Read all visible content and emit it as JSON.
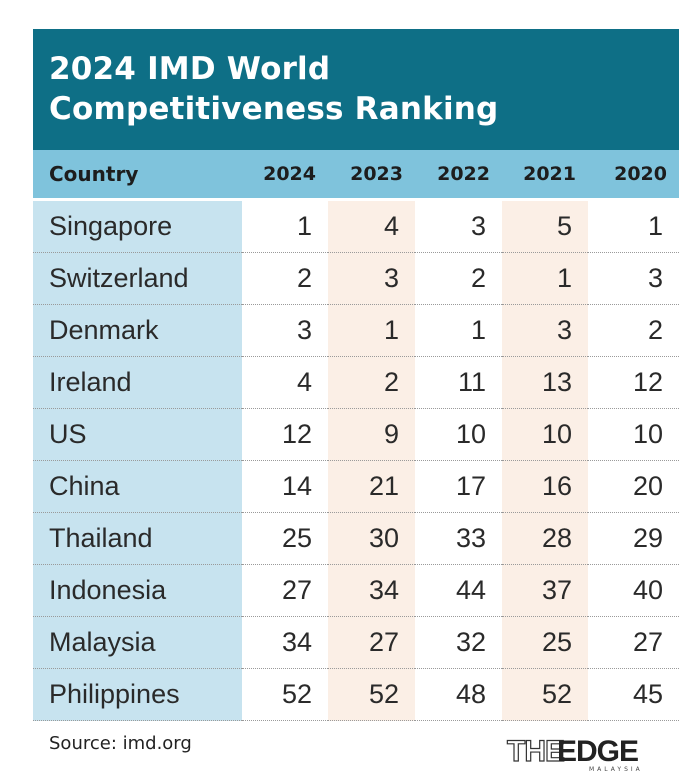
{
  "title": {
    "line1": "2024 IMD World",
    "line2": "Competitiveness Ranking"
  },
  "table": {
    "headers": [
      "Country",
      "2024",
      "2023",
      "2022",
      "2021",
      "2020"
    ],
    "rows": [
      [
        "Singapore",
        "1",
        "4",
        "3",
        "5",
        "1"
      ],
      [
        "Switzerland",
        "2",
        "3",
        "2",
        "1",
        "3"
      ],
      [
        "Denmark",
        "3",
        "1",
        "1",
        "3",
        "2"
      ],
      [
        "Ireland",
        "4",
        "2",
        "11",
        "13",
        "12"
      ],
      [
        "US",
        "12",
        "9",
        "10",
        "10",
        "10"
      ],
      [
        "China",
        "14",
        "21",
        "17",
        "16",
        "20"
      ],
      [
        "Thailand",
        "25",
        "30",
        "33",
        "28",
        "29"
      ],
      [
        "Indonesia",
        "27",
        "34",
        "44",
        "37",
        "40"
      ],
      [
        "Malaysia",
        "34",
        "27",
        "32",
        "25",
        "27"
      ],
      [
        "Philippines",
        "52",
        "52",
        "48",
        "52",
        "45"
      ]
    ]
  },
  "source": "Source: imd.org",
  "logo": {
    "the": "THE",
    "edge": "EDGE",
    "sub": "MALAYSIA"
  },
  "colors": {
    "title_bg": "#0e6f86",
    "header_bg": "#7fc3dc",
    "country_col_bg": "#c7e3ef",
    "alt_col_bg": "#fbefe6"
  }
}
